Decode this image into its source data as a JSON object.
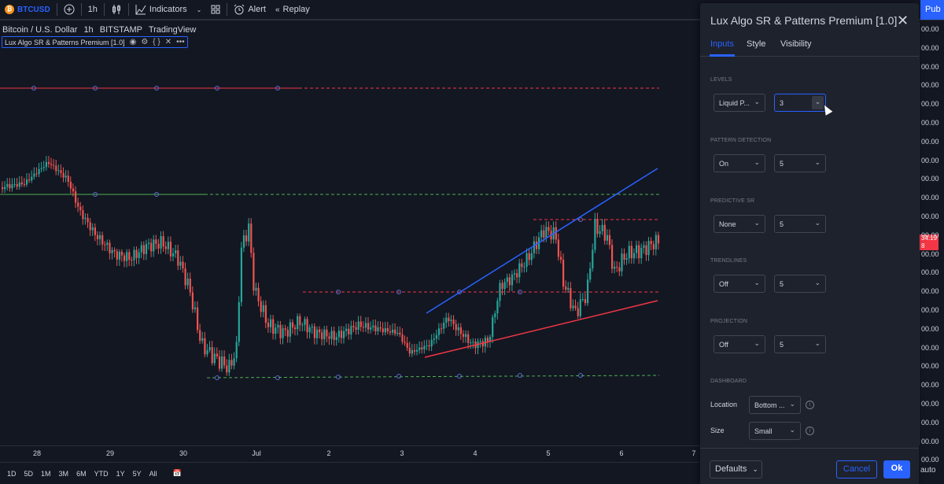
{
  "toolbar": {
    "symbol": "BTCUSD",
    "symbol_icon": "₿",
    "interval": "1h",
    "indicators_label": "Indicators",
    "alert_label": "Alert",
    "replay_label": "Replay",
    "publish_label": "Pub"
  },
  "legend": {
    "pair": "Bitcoin / U.S. Dollar",
    "interval": "1h",
    "exchange": "BITSTAMP",
    "source": "TradingView",
    "indicator": "Lux Algo SR & Patterns Premium [1.0]"
  },
  "price_axis": {
    "ticks": [
      "00.00",
      "00.00",
      "00.00",
      "00.00",
      "00.00",
      "00.00",
      "00.00",
      "00.00",
      "00.00",
      "00.00",
      "00.00",
      "00.00",
      "00.00",
      "00.00",
      "00.00",
      "00.00",
      "00.00",
      "00.00",
      "00.00",
      "00.00",
      "00.00",
      "00.00",
      "00.00",
      "00.00"
    ],
    "last_price_top": "34.19",
    "last_price_bottom": "8",
    "auto_label": "auto"
  },
  "time_axis": {
    "ticks": [
      "28",
      "29",
      "30",
      "Jul",
      "2",
      "3",
      "4",
      "5",
      "6",
      "7"
    ]
  },
  "ranges": [
    "1D",
    "5D",
    "1M",
    "3M",
    "6M",
    "YTD",
    "1Y",
    "5Y",
    "All"
  ],
  "colors": {
    "up": "#26a69a",
    "down": "#ef5350",
    "accent": "#2962ff",
    "resistance": "#f23645",
    "support": "#4caf50",
    "trend_up": "#2962ff",
    "trend_down": "#f23645"
  },
  "dialog": {
    "title": "Lux Algo SR & Patterns Premium [1.0]",
    "tabs": [
      "Inputs",
      "Style",
      "Visibility"
    ],
    "sections": {
      "levels": {
        "label": "LEVELS",
        "type_value": "Liquid P...",
        "count_value": "3"
      },
      "pattern": {
        "label": "PATTERN DETECTION",
        "mode_value": "On",
        "count_value": "5"
      },
      "predictive": {
        "label": "PREDICTIVE SR",
        "mode_value": "None",
        "count_value": "5"
      },
      "trendlines": {
        "label": "TRENDLINES",
        "mode_value": "Off",
        "count_value": "5"
      },
      "projection": {
        "label": "PROJECTION",
        "mode_value": "Off",
        "count_value": "5"
      },
      "dashboard": {
        "label": "DASHBOARD",
        "location_label": "Location",
        "location_value": "Bottom ...",
        "size_label": "Size",
        "size_value": "Small"
      }
    },
    "footer": {
      "defaults": "Defaults",
      "cancel": "Cancel",
      "ok": "Ok"
    }
  }
}
